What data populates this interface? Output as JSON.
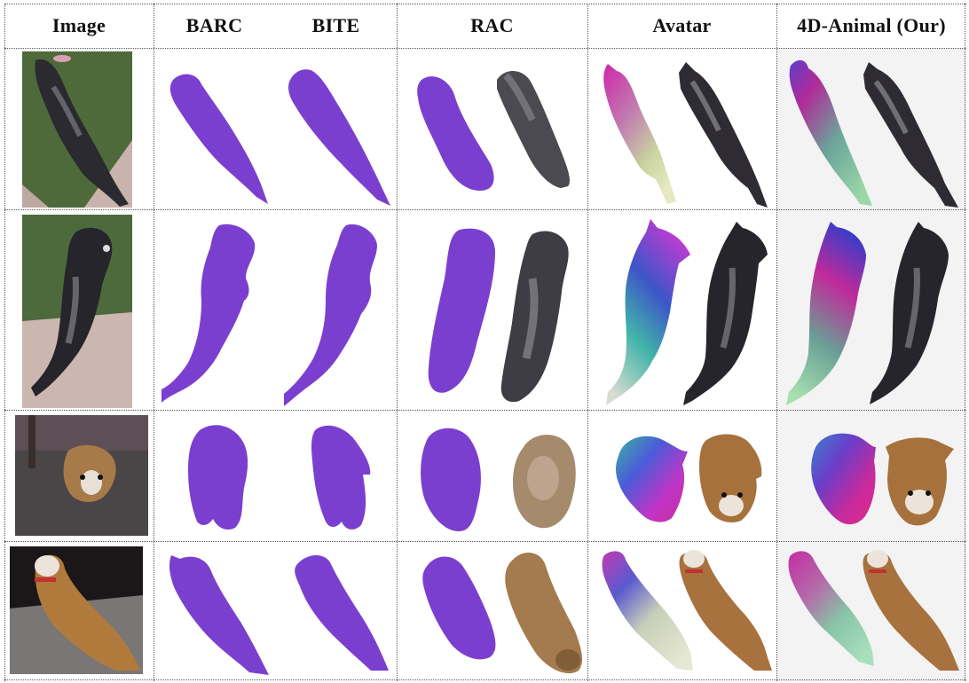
{
  "headers": [
    "Image",
    "BARC",
    "BITE",
    "RAC",
    "Avatar",
    "4D-Animal (Our)"
  ],
  "colors": {
    "purple": "#7b3fd0",
    "purple_dark": "#5f2bb0",
    "grid_line": "#555555",
    "last_col_bg": "#f3f3f3"
  }
}
